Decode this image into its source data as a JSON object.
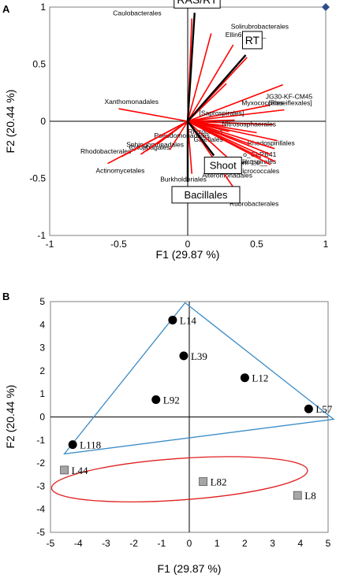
{
  "panels": {
    "a_letter": "A",
    "b_letter": "B"
  },
  "chart_data": [
    {
      "type": "scatter",
      "subtype": "correlation-circle",
      "xlabel": "F1 (29.87 %)",
      "ylabel": "F2 (20.44 %)",
      "xlim": [
        -1,
        1
      ],
      "ylim": [
        -1,
        1
      ],
      "xticks": [
        "-1",
        "-0.5",
        "0",
        "0.5",
        "1"
      ],
      "yticks": [
        "-1",
        "-0.5",
        "0",
        "0.5",
        "1"
      ],
      "active_variables": [
        {
          "name": "Caulobacterales",
          "x": 0.03,
          "y": 0.9
        },
        {
          "name": "Solirubrobacterales",
          "x": 0.17,
          "y": 0.77
        },
        {
          "name": "Ellin6529;o__",
          "x": 0.33,
          "y": 0.67
        },
        {
          "name": "JG30-KF-CM45",
          "x": 0.69,
          "y": 0.32
        },
        {
          "name": "Myxococcales",
          "x": 0.59,
          "y": 0.14
        },
        {
          "name": "[Roseiflexales]",
          "x": 0.7,
          "y": 0.1
        },
        {
          "name": "[Saprospirales]",
          "x": 0.34,
          "y": 0.01
        },
        {
          "name": "Nitrososphaerales",
          "x": 0.62,
          "y": -0.03
        },
        {
          "name": "Rhizobiales",
          "x": 0.27,
          "y": -0.04
        },
        {
          "name": "Gaiellales",
          "x": 0.3,
          "y": -0.09
        },
        {
          "name": "Rhodospirillales",
          "x": 0.65,
          "y": -0.17
        },
        {
          "name": "o_Gi-RB41",
          "x": 0.63,
          "y": -0.24
        },
        {
          "name": "Nitrospirales",
          "x": 0.6,
          "y": -0.29
        },
        {
          "name": "Micrococcales",
          "x": 0.63,
          "y": -0.35
        },
        {
          "name": "c__Gemm-1;o__",
          "x": 0.53,
          "y": -0.32
        },
        {
          "name": "Alteromonadales",
          "x": 0.39,
          "y": -0.43
        },
        {
          "name": "Rubrobacterales",
          "x": 0.36,
          "y": -0.63
        },
        {
          "name": "Burkholderiales",
          "x": 0.03,
          "y": -0.46
        },
        {
          "name": "Sphingomonadales",
          "x": -0.13,
          "y": -0.25
        },
        {
          "name": "Pseudomonadales",
          "x": -0.22,
          "y": -0.2
        },
        {
          "name": "Cytophagales",
          "x": -0.34,
          "y": -0.29
        },
        {
          "name": "Rhodobacterales",
          "x": -0.48,
          "y": -0.31
        },
        {
          "name": "Actinomycetales",
          "x": -0.58,
          "y": -0.37
        },
        {
          "name": "Xanthomonadales",
          "x": -0.5,
          "y": 0.11
        },
        {
          "name": "",
          "x": 0.28,
          "y": 0.33
        },
        {
          "name": "",
          "x": 0.43,
          "y": 0.56
        },
        {
          "name": "",
          "x": 0.6,
          "y": -0.38
        },
        {
          "name": "",
          "x": 0.45,
          "y": -0.2
        },
        {
          "name": "",
          "x": 0.5,
          "y": -0.1
        },
        {
          "name": "",
          "x": 0.15,
          "y": -0.02
        },
        {
          "name": "",
          "x": -0.3,
          "y": -0.26
        }
      ],
      "supplementary_variables": [
        {
          "name": "RAS/RT",
          "x": 0.05,
          "y": 0.95
        },
        {
          "name": "RT",
          "x": 0.42,
          "y": 0.58
        },
        {
          "name": "Shoot",
          "x": 0.19,
          "y": -0.3
        },
        {
          "name": "Bacillales",
          "x": 0.0,
          "y": -0.53
        }
      ],
      "corner_marker": {
        "x": 1.0,
        "y": 1.0
      },
      "colors": {
        "active": "#ff0000",
        "supplementary": "#000000",
        "marker": "#2f4b8c"
      }
    },
    {
      "type": "scatter",
      "subtype": "score-plot",
      "xlabel": "F1 (29.87 %)",
      "ylabel": "F2 (20.44 %)",
      "xlim": [
        -5,
        5
      ],
      "ylim": [
        -5,
        5
      ],
      "xticks": [
        "-5",
        "-4",
        "-3",
        "-2",
        "-1",
        "0",
        "1",
        "2",
        "3",
        "4",
        "5"
      ],
      "yticks": [
        "-5",
        "-4",
        "-3",
        "-2",
        "-1",
        "0",
        "1",
        "2",
        "3",
        "4",
        "5"
      ],
      "groups": [
        {
          "marker": "circle",
          "color": "#000000",
          "points": [
            {
              "label": "L14",
              "x": -0.6,
              "y": 4.2
            },
            {
              "label": "L39",
              "x": -0.2,
              "y": 2.65
            },
            {
              "label": "L12",
              "x": 2.0,
              "y": 1.7
            },
            {
              "label": "L92",
              "x": -1.2,
              "y": 0.75
            },
            {
              "label": "L57",
              "x": 4.3,
              "y": 0.35
            },
            {
              "label": "L118",
              "x": -4.2,
              "y": -1.2
            }
          ]
        },
        {
          "marker": "square",
          "color": "#a6a6a6",
          "points": [
            {
              "label": "L44",
              "x": -4.5,
              "y": -2.3
            },
            {
              "label": "L82",
              "x": 0.5,
              "y": -2.8
            },
            {
              "label": "L8",
              "x": 3.9,
              "y": -3.4
            }
          ]
        }
      ],
      "hull": {
        "color": "#3c8dc8",
        "vertices": [
          [
            -0.15,
            4.95
          ],
          [
            5.2,
            -0.1
          ],
          [
            -4.5,
            -1.6
          ]
        ]
      },
      "ellipse": {
        "color": "#e02020",
        "center": [
          -0.35,
          -2.7
        ],
        "radii": [
          4.62,
          0.9
        ]
      }
    }
  ]
}
